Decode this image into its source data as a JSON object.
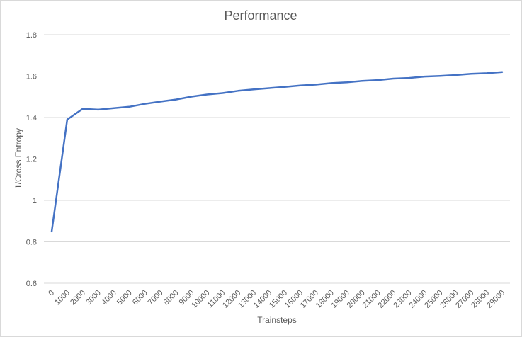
{
  "chart_data": {
    "type": "line",
    "title": "Performance",
    "xlabel": "Trainsteps",
    "ylabel": "1/Cross Entropy",
    "x": [
      0,
      1000,
      2000,
      3000,
      4000,
      5000,
      6000,
      7000,
      8000,
      9000,
      10000,
      11000,
      12000,
      13000,
      14000,
      15000,
      16000,
      17000,
      18000,
      19000,
      20000,
      21000,
      22000,
      23000,
      24000,
      25000,
      26000,
      27000,
      28000,
      29000
    ],
    "series": [
      {
        "color": "#4472c4",
        "values": [
          0.85,
          1.39,
          1.442,
          1.438,
          1.445,
          1.452,
          1.466,
          1.477,
          1.487,
          1.501,
          1.511,
          1.518,
          1.529,
          1.536,
          1.542,
          1.548,
          1.555,
          1.559,
          1.566,
          1.57,
          1.577,
          1.581,
          1.588,
          1.591,
          1.598,
          1.601,
          1.605,
          1.611,
          1.614,
          1.62
        ]
      }
    ],
    "yticks": [
      "0.6",
      "0.8",
      "1",
      "1.2",
      "1.4",
      "1.6",
      "1.8"
    ],
    "ylim": [
      0.6,
      1.8
    ],
    "grid": true,
    "legend": "none"
  }
}
